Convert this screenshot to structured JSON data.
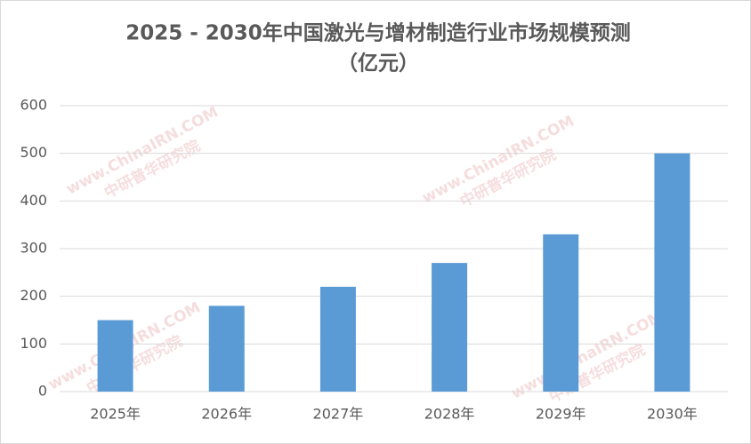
{
  "chart_data": {
    "type": "bar",
    "title": "2025 - 2030年中国激光与增材制造行业市场规模预测",
    "subtitle": "（亿元）",
    "categories": [
      "2025年",
      "2026年",
      "2027年",
      "2028年",
      "2029年",
      "2030年"
    ],
    "values": [
      150,
      180,
      220,
      270,
      330,
      500
    ],
    "color": "#5b9bd5",
    "ylim": [
      0,
      600
    ],
    "yticks": [
      0,
      100,
      200,
      300,
      400,
      500,
      600
    ],
    "grid": true,
    "watermark": [
      "www.ChinaIRN.COM",
      "中研普华研究院"
    ]
  }
}
